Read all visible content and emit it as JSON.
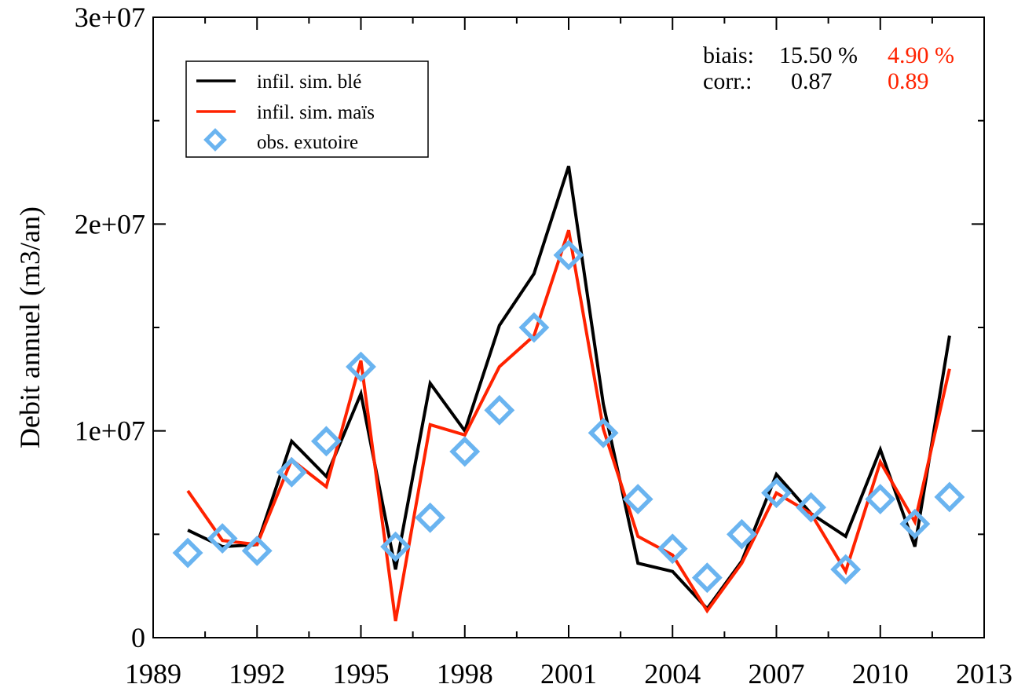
{
  "chart_data": {
    "type": "line",
    "title": "",
    "xlabel": "",
    "ylabel": "Debit annuel (m3/an)",
    "xlim": [
      1989,
      2013
    ],
    "ylim": [
      0,
      30000000
    ],
    "x_ticks": [
      1989,
      1992,
      1995,
      1998,
      2001,
      2004,
      2007,
      2010,
      2013
    ],
    "x_tick_labels": [
      "1989",
      "1992",
      "1995",
      "1998",
      "2001",
      "2004",
      "2007",
      "2010",
      "2013"
    ],
    "y_ticks": [
      0,
      10000000,
      20000000,
      30000000
    ],
    "y_tick_labels": [
      "0",
      "1e+07",
      "2e+07",
      "3e+07"
    ],
    "grid": false,
    "legend_position": "top-left",
    "series": [
      {
        "name": "infil. sim. blé",
        "kind": "line",
        "color": "#000000",
        "x": [
          1990,
          1991,
          1992,
          1993,
          1994,
          1995,
          1996,
          1997,
          1998,
          1999,
          2000,
          2001,
          2002,
          2003,
          2004,
          2005,
          2006,
          2007,
          2008,
          2009,
          2010,
          2011,
          2012
        ],
        "y": [
          5200000,
          4400000,
          4500000,
          9500000,
          7800000,
          11800000,
          3300000,
          12300000,
          10000000,
          15100000,
          17600000,
          22800000,
          11300000,
          3600000,
          3200000,
          1400000,
          3700000,
          7900000,
          6000000,
          4900000,
          9100000,
          4400000,
          14600000
        ]
      },
      {
        "name": "infil. sim. maïs",
        "kind": "line",
        "color": "#ff2200",
        "x": [
          1990,
          1991,
          1992,
          1993,
          1994,
          1995,
          1996,
          1997,
          1998,
          1999,
          2000,
          2001,
          2002,
          2003,
          2004,
          2005,
          2006,
          2007,
          2008,
          2009,
          2010,
          2011,
          2012
        ],
        "y": [
          7100000,
          4700000,
          4500000,
          8600000,
          7300000,
          13400000,
          800000,
          10300000,
          9800000,
          13100000,
          14600000,
          19700000,
          10100000,
          4900000,
          4000000,
          1300000,
          3600000,
          7000000,
          6000000,
          3200000,
          8500000,
          5600000,
          13000000
        ]
      },
      {
        "name": "obs. exutoire",
        "kind": "marker",
        "color": "#6ab4f0",
        "x": [
          1990,
          1991,
          1992,
          1993,
          1994,
          1995,
          1996,
          1997,
          1998,
          1999,
          2000,
          2001,
          2002,
          2003,
          2004,
          2005,
          2006,
          2007,
          2008,
          2009,
          2010,
          2011,
          2012
        ],
        "y": [
          4100000,
          4800000,
          4200000,
          8000000,
          9500000,
          13100000,
          4400000,
          5800000,
          9000000,
          11000000,
          15000000,
          18500000,
          9900000,
          6700000,
          4300000,
          2900000,
          5000000,
          7000000,
          6300000,
          3300000,
          6700000,
          5500000,
          6800000
        ]
      }
    ],
    "stats": {
      "biais_label": "biais:",
      "biais_ble": "15.50 %",
      "biais_mais": "4.90 %",
      "corr_label": "corr.:",
      "corr_ble": "0.87",
      "corr_mais": "0.89",
      "ble_color": "#000000",
      "mais_color": "#ff2200"
    }
  }
}
